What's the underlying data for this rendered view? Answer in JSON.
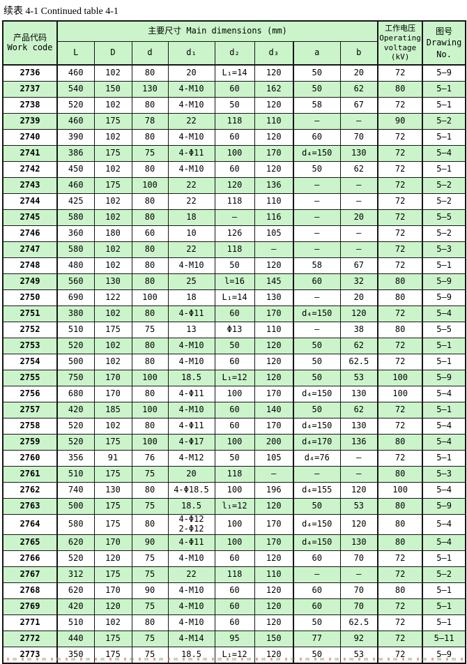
{
  "title": "续表 4-1 Continued table 4-1",
  "colors": {
    "row_green": "#cbf4cb",
    "header_green": "#cbf4cb",
    "border": "#141414",
    "background": "#ffffff"
  },
  "table": {
    "header": {
      "work_code": "产品代码\nWork code",
      "main_dimensions": "主要尺寸  Main dimensions  (mm)",
      "dim_columns": [
        "L",
        "D",
        "d",
        "d₁",
        "d₂",
        "d₃",
        "a",
        "b"
      ],
      "operating_voltage": "工作电压\nOperating\nvoltage\n(kV)",
      "drawing_no": "图号\nDrawing\nNo."
    },
    "rows": [
      {
        "code": "2736",
        "L": "460",
        "D": "102",
        "d": "80",
        "d1": "20",
        "d2": "L₁=14",
        "d3": "120",
        "a": "50",
        "b": "20",
        "kv": "72",
        "no": "5—9"
      },
      {
        "code": "2737",
        "L": "540",
        "D": "150",
        "d": "130",
        "d1": "4-M10",
        "d2": "60",
        "d3": "162",
        "a": "50",
        "b": "62",
        "kv": "80",
        "no": "5—1"
      },
      {
        "code": "2738",
        "L": "520",
        "D": "102",
        "d": "80",
        "d1": "4-M10",
        "d2": "50",
        "d3": "120",
        "a": "58",
        "b": "67",
        "kv": "72",
        "no": "5—1"
      },
      {
        "code": "2739",
        "L": "460",
        "D": "175",
        "d": "78",
        "d1": "22",
        "d2": "118",
        "d3": "110",
        "a": "—",
        "b": "—",
        "kv": "90",
        "no": "5—2"
      },
      {
        "code": "2740",
        "L": "390",
        "D": "102",
        "d": "80",
        "d1": "4-M10",
        "d2": "60",
        "d3": "120",
        "a": "60",
        "b": "70",
        "kv": "72",
        "no": "5—1"
      },
      {
        "code": "2741",
        "L": "386",
        "D": "175",
        "d": "75",
        "d1": "4-Φ11",
        "d2": "100",
        "d3": "170",
        "a": "d₄=150",
        "b": "130",
        "kv": "72",
        "no": "5—4"
      },
      {
        "code": "2742",
        "L": "450",
        "D": "102",
        "d": "80",
        "d1": "4-M10",
        "d2": "60",
        "d3": "120",
        "a": "50",
        "b": "62",
        "kv": "72",
        "no": "5—1"
      },
      {
        "code": "2743",
        "L": "460",
        "D": "175",
        "d": "100",
        "d1": "22",
        "d2": "120",
        "d3": "136",
        "a": "—",
        "b": "—",
        "kv": "72",
        "no": "5—2"
      },
      {
        "code": "2744",
        "L": "425",
        "D": "102",
        "d": "80",
        "d1": "22",
        "d2": "118",
        "d3": "110",
        "a": "—",
        "b": "—",
        "kv": "72",
        "no": "5—2"
      },
      {
        "code": "2745",
        "L": "580",
        "D": "102",
        "d": "80",
        "d1": "18",
        "d2": "—",
        "d3": "116",
        "a": "—",
        "b": "20",
        "kv": "72",
        "no": "5—5"
      },
      {
        "code": "2746",
        "L": "360",
        "D": "180",
        "d": "60",
        "d1": "10",
        "d2": "126",
        "d3": "105",
        "a": "—",
        "b": "—",
        "kv": "72",
        "no": "5—2"
      },
      {
        "code": "2747",
        "L": "580",
        "D": "102",
        "d": "80",
        "d1": "22",
        "d2": "118",
        "d3": "—",
        "a": "—",
        "b": "—",
        "kv": "72",
        "no": "5—3"
      },
      {
        "code": "2748",
        "L": "480",
        "D": "102",
        "d": "80",
        "d1": "4-M10",
        "d2": "50",
        "d3": "120",
        "a": "58",
        "b": "67",
        "kv": "72",
        "no": "5—1"
      },
      {
        "code": "2749",
        "L": "560",
        "D": "130",
        "d": "80",
        "d1": "25",
        "d2": "l=16",
        "d3": "145",
        "a": "60",
        "b": "32",
        "kv": "80",
        "no": "5—9"
      },
      {
        "code": "2750",
        "L": "690",
        "D": "122",
        "d": "100",
        "d1": "18",
        "d2": "L₁=14",
        "d3": "130",
        "a": "—",
        "b": "20",
        "kv": "80",
        "no": "5—9"
      },
      {
        "code": "2751",
        "L": "380",
        "D": "102",
        "d": "80",
        "d1": "4-Φ11",
        "d2": "60",
        "d3": "170",
        "a": "d₄=150",
        "b": "120",
        "kv": "72",
        "no": "5—4"
      },
      {
        "code": "2752",
        "L": "510",
        "D": "175",
        "d": "75",
        "d1": "13",
        "d2": "Φ13",
        "d3": "110",
        "a": "—",
        "b": "38",
        "kv": "80",
        "no": "5—5"
      },
      {
        "code": "2753",
        "L": "520",
        "D": "102",
        "d": "80",
        "d1": "4-M10",
        "d2": "50",
        "d3": "120",
        "a": "50",
        "b": "62",
        "kv": "72",
        "no": "5—1"
      },
      {
        "code": "2754",
        "L": "500",
        "D": "102",
        "d": "80",
        "d1": "4-M10",
        "d2": "60",
        "d3": "120",
        "a": "50",
        "b": "62.5",
        "kv": "72",
        "no": "5—1"
      },
      {
        "code": "2755",
        "L": "750",
        "D": "170",
        "d": "100",
        "d1": "18.5",
        "d2": "L₁=12",
        "d3": "120",
        "a": "50",
        "b": "53",
        "kv": "100",
        "no": "5—9"
      },
      {
        "code": "2756",
        "L": "680",
        "D": "170",
        "d": "80",
        "d1": "4-Φ11",
        "d2": "100",
        "d3": "170",
        "a": "d₄=150",
        "b": "130",
        "kv": "100",
        "no": "5—4"
      },
      {
        "code": "2757",
        "L": "420",
        "D": "185",
        "d": "100",
        "d1": "4-M10",
        "d2": "60",
        "d3": "140",
        "a": "50",
        "b": "62",
        "kv": "72",
        "no": "5—1"
      },
      {
        "code": "2758",
        "L": "520",
        "D": "102",
        "d": "80",
        "d1": "4-Φ11",
        "d2": "60",
        "d3": "170",
        "a": "d₄=150",
        "b": "130",
        "kv": "72",
        "no": "5—4"
      },
      {
        "code": "2759",
        "L": "520",
        "D": "175",
        "d": "100",
        "d1": "4-Φ17",
        "d2": "100",
        "d3": "200",
        "a": "d₄=170",
        "b": "136",
        "kv": "80",
        "no": "5—4"
      },
      {
        "code": "2760",
        "L": "356",
        "D": "91",
        "d": "76",
        "d1": "4-M12",
        "d2": "50",
        "d3": "105",
        "a": "d₄=76",
        "b": "—",
        "kv": "72",
        "no": "5—1"
      },
      {
        "code": "2761",
        "L": "510",
        "D": "175",
        "d": "75",
        "d1": "20",
        "d2": "118",
        "d3": "—",
        "a": "—",
        "b": "—",
        "kv": "80",
        "no": "5—3"
      },
      {
        "code": "2762",
        "L": "740",
        "D": "130",
        "d": "80",
        "d1": "4-Φ18.5",
        "d2": "100",
        "d3": "196",
        "a": "d₄=155",
        "b": "120",
        "kv": "100",
        "no": "5—4"
      },
      {
        "code": "2763",
        "L": "500",
        "D": "175",
        "d": "75",
        "d1": "18.5",
        "d2": "l₁=12",
        "d3": "120",
        "a": "50",
        "b": "53",
        "kv": "80",
        "no": "5—9"
      },
      {
        "code": "2764",
        "L": "580",
        "D": "175",
        "d": "80",
        "d1": "4-Φ12\n2-Φ12",
        "d2": "100",
        "d3": "170",
        "a": "d₄=150",
        "b": "120",
        "kv": "80",
        "no": "5—4"
      },
      {
        "code": "2765",
        "L": "620",
        "D": "170",
        "d": "90",
        "d1": "4-Φ11",
        "d2": "100",
        "d3": "170",
        "a": "d₄=150",
        "b": "130",
        "kv": "80",
        "no": "5—4"
      },
      {
        "code": "2766",
        "L": "520",
        "D": "120",
        "d": "75",
        "d1": "4-M10",
        "d2": "60",
        "d3": "120",
        "a": "60",
        "b": "70",
        "kv": "72",
        "no": "5—1"
      },
      {
        "code": "2767",
        "L": "312",
        "D": "175",
        "d": "75",
        "d1": "22",
        "d2": "118",
        "d3": "110",
        "a": "—",
        "b": "—",
        "kv": "72",
        "no": "5—2"
      },
      {
        "code": "2768",
        "L": "620",
        "D": "170",
        "d": "90",
        "d1": "4-M10",
        "d2": "60",
        "d3": "120",
        "a": "60",
        "b": "70",
        "kv": "80",
        "no": "5—1"
      },
      {
        "code": "2769",
        "L": "420",
        "D": "120",
        "d": "75",
        "d1": "4-M10",
        "d2": "60",
        "d3": "120",
        "a": "60",
        "b": "70",
        "kv": "72",
        "no": "5—1"
      },
      {
        "code": "2771",
        "L": "510",
        "D": "102",
        "d": "80",
        "d1": "4-M10",
        "d2": "60",
        "d3": "120",
        "a": "50",
        "b": "62.5",
        "kv": "72",
        "no": "5—1"
      },
      {
        "code": "2772",
        "L": "440",
        "D": "175",
        "d": "75",
        "d1": "4-M14",
        "d2": "95",
        "d3": "150",
        "a": "77",
        "b": "92",
        "kv": "72",
        "no": "5—11"
      },
      {
        "code": "2773",
        "L": "350",
        "D": "175",
        "d": "75",
        "d1": "18.5",
        "d2": "L₁=12",
        "d3": "120",
        "a": "50",
        "b": "53",
        "kv": "72",
        "no": "5—9"
      }
    ]
  }
}
